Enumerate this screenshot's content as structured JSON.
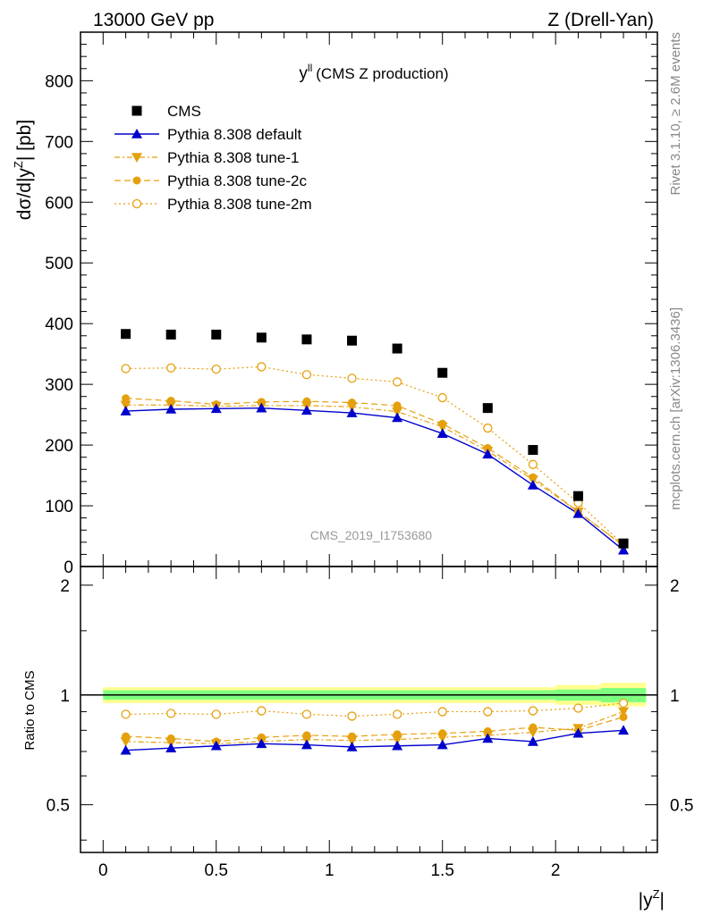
{
  "header": {
    "left": "13000 GeV pp",
    "right": "Z (Drell-Yan)"
  },
  "side_texts": {
    "rivet": "Rivet 3.1.10, ≥ 2.6M events",
    "mcplots": "mcplots.cern.ch [arXiv:1306.3436]"
  },
  "plot_title": {
    "main": "y",
    "sup": "ll",
    "paren": "(CMS Z production)"
  },
  "watermark": "CMS_2019_I1753680",
  "y_label": {
    "pre": "dσ/d|y",
    "sup": "Z",
    "post": "| [pb]"
  },
  "ratio_y_label": "Ratio to CMS",
  "x_label": {
    "pre": "|y",
    "sup": "Z",
    "post": "|"
  },
  "colors": {
    "cms": "#000000",
    "default": "#0000cc",
    "tune": "#e5a00d",
    "band_inner": "#7fff7f",
    "band_outer": "#ffff90"
  },
  "chart_data": {
    "type": "scatter",
    "x": [
      0.1,
      0.3,
      0.5,
      0.7,
      0.9,
      1.1,
      1.3,
      1.5,
      1.7,
      1.9,
      2.1,
      2.3
    ],
    "xlim": [
      -0.1,
      2.45
    ],
    "main_ylim": [
      0,
      880
    ],
    "ratio_ylim": [
      0.37,
      2.25
    ],
    "ratio_scale": "log",
    "main_yticks": [
      0,
      100,
      200,
      300,
      400,
      500,
      600,
      700,
      800
    ],
    "main_ytick_labels": [
      "0",
      "100",
      "200",
      "300",
      "400",
      "500",
      "600",
      "700",
      "800"
    ],
    "ratio_yticks": [
      0.5,
      1,
      2
    ],
    "ratio_ytick_labels": [
      "0.5",
      "1",
      "2"
    ],
    "xticks": [
      0,
      0.5,
      1,
      1.5,
      2
    ],
    "xtick_labels": [
      "0",
      "0.5",
      "1",
      "1.5",
      "2"
    ],
    "legend_position": "top-left",
    "series": [
      {
        "key": "cms",
        "name": "CMS",
        "style": "marker-square",
        "values": [
          383,
          382,
          382,
          377,
          374,
          372,
          359,
          319,
          261,
          192,
          116,
          38
        ],
        "ratio": null,
        "band_inner": [
          0.97,
          0.97,
          0.97,
          0.97,
          0.97,
          0.97,
          0.97,
          0.97,
          0.97,
          0.97,
          0.965,
          0.955
        ],
        "band_inner_hi": [
          1.03,
          1.03,
          1.03,
          1.03,
          1.03,
          1.03,
          1.03,
          1.03,
          1.03,
          1.03,
          1.035,
          1.045
        ],
        "band_outer": [
          0.95,
          0.95,
          0.95,
          0.95,
          0.95,
          0.95,
          0.95,
          0.95,
          0.95,
          0.95,
          0.94,
          0.93
        ],
        "band_outer_hi": [
          1.05,
          1.05,
          1.05,
          1.05,
          1.05,
          1.05,
          1.05,
          1.05,
          1.05,
          1.05,
          1.065,
          1.08
        ]
      },
      {
        "key": "default",
        "name": "Pythia 8.308 default",
        "style": "solid-triangle-up",
        "values": [
          256,
          259,
          260,
          261,
          257,
          253,
          245,
          219,
          185,
          134,
          87,
          27
        ],
        "ratio": [
          0.705,
          0.715,
          0.725,
          0.735,
          0.73,
          0.72,
          0.725,
          0.73,
          0.76,
          0.745,
          0.785,
          0.8
        ]
      },
      {
        "key": "tune1",
        "name": "Pythia 8.308 tune-1",
        "style": "dashdot-triangle-down",
        "values": [
          266,
          266,
          264,
          265,
          265,
          263,
          255,
          230,
          190,
          143,
          90,
          35
        ],
        "ratio": [
          0.745,
          0.74,
          0.735,
          0.745,
          0.755,
          0.75,
          0.755,
          0.765,
          0.775,
          0.79,
          0.81,
          0.9
        ]
      },
      {
        "key": "tune2c",
        "name": "Pythia 8.308 tune-2c",
        "style": "dashed-circle",
        "values": [
          277,
          273,
          267,
          271,
          272,
          270,
          265,
          235,
          195,
          147,
          90,
          34
        ],
        "ratio": [
          0.77,
          0.76,
          0.745,
          0.765,
          0.775,
          0.77,
          0.78,
          0.785,
          0.795,
          0.815,
          0.8,
          0.87
        ]
      },
      {
        "key": "tune2m",
        "name": "Pythia 8.308 tune-2m",
        "style": "dotted-open-circle",
        "values": [
          326,
          327,
          325,
          329,
          316,
          310,
          304,
          278,
          228,
          168,
          105,
          36
        ],
        "ratio": [
          0.885,
          0.89,
          0.885,
          0.905,
          0.885,
          0.875,
          0.885,
          0.9,
          0.9,
          0.905,
          0.92,
          0.95
        ]
      }
    ]
  }
}
